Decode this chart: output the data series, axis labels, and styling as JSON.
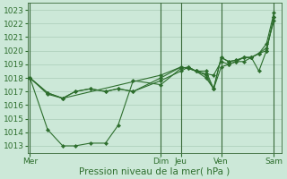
{
  "background_color": "#cce8d8",
  "grid_color": "#aaccb8",
  "line_color": "#2d6e2d",
  "marker_color": "#2d6e2d",
  "xlabel": "Pression niveau de la mer( hPa )",
  "xlabel_fontsize": 7.5,
  "ylabel_fontsize": 6.5,
  "tick_fontsize": 6.5,
  "ylim": [
    1012.5,
    1023.5
  ],
  "yticks": [
    1013,
    1014,
    1015,
    1016,
    1017,
    1018,
    1019,
    1020,
    1021,
    1022,
    1023
  ],
  "day_labels": [
    "Mer",
    "Dim",
    "Jeu",
    "Ven",
    "Sam"
  ],
  "day_positions": [
    0.0,
    0.52,
    0.6,
    0.76,
    0.97
  ],
  "vline_positions": [
    0.0,
    0.52,
    0.6,
    0.76,
    0.97
  ],
  "series": [
    {
      "x": [
        0.0,
        0.07,
        0.13,
        0.18,
        0.24,
        0.3,
        0.35,
        0.41,
        0.52,
        0.6,
        0.63,
        0.66,
        0.7,
        0.73,
        0.76,
        0.79,
        0.82,
        0.85,
        0.88,
        0.91,
        0.94,
        0.97
      ],
      "y": [
        1018.0,
        1016.9,
        1016.5,
        1017.0,
        1017.2,
        1017.0,
        1017.2,
        1017.0,
        1017.8,
        1018.5,
        1018.8,
        1018.5,
        1018.3,
        1018.2,
        1019.2,
        1019.0,
        1019.2,
        1019.2,
        1019.5,
        1018.5,
        1020.0,
        1022.5
      ]
    },
    {
      "x": [
        0.0,
        0.07,
        0.13,
        0.18,
        0.24,
        0.3,
        0.35,
        0.41,
        0.52,
        0.6,
        0.63,
        0.66,
        0.7,
        0.73,
        0.76,
        0.79,
        0.82,
        0.85,
        0.88,
        0.91,
        0.94,
        0.97
      ],
      "y": [
        1018.0,
        1016.8,
        1016.5,
        1017.0,
        1017.2,
        1017.0,
        1017.2,
        1017.0,
        1018.0,
        1018.8,
        1018.7,
        1018.5,
        1018.0,
        1017.2,
        1019.5,
        1019.2,
        1019.3,
        1019.5,
        1019.5,
        1019.8,
        1020.2,
        1022.2
      ]
    },
    {
      "x": [
        0.0,
        0.07,
        0.13,
        0.52,
        0.6,
        0.63,
        0.66,
        0.7,
        0.73,
        0.76,
        0.79,
        0.82,
        0.85,
        0.88,
        0.91,
        0.94,
        0.97
      ],
      "y": [
        1018.0,
        1016.9,
        1016.5,
        1018.2,
        1018.8,
        1018.7,
        1018.5,
        1018.2,
        1017.2,
        1019.5,
        1019.2,
        1019.3,
        1019.5,
        1019.5,
        1019.8,
        1020.5,
        1022.8
      ]
    },
    {
      "x": [
        0.0,
        0.07,
        0.13,
        0.18,
        0.24,
        0.3,
        0.35,
        0.41,
        0.52,
        0.6,
        0.63,
        0.66,
        0.7,
        0.73,
        0.76,
        0.79,
        0.82,
        0.85,
        0.88,
        0.91,
        0.94,
        0.97
      ],
      "y": [
        1018.0,
        1014.2,
        1013.0,
        1013.0,
        1013.2,
        1013.2,
        1014.5,
        1017.8,
        1017.5,
        1018.7,
        1018.8,
        1018.5,
        1018.5,
        1017.2,
        1018.8,
        1019.0,
        1019.2,
        1019.5,
        1019.5,
        1019.8,
        1020.0,
        1022.5
      ]
    }
  ],
  "vline_color": "#3a6a3a",
  "spine_color": "#3a6a3a"
}
